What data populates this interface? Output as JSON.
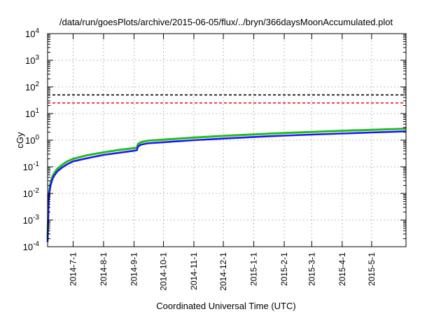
{
  "chart_data": {
    "type": "line",
    "title": "/data/run/goesPlots/archive/2015-06-05/flux/../bryn/366daysMoonAccumulated.plot",
    "xlabel": "Coordinated Universal Time (UTC)",
    "ylabel": "cGy",
    "yscale": "log",
    "ylim": [
      0.0001,
      10000
    ],
    "xlim": [
      "2014-06-05",
      "2015-06-05"
    ],
    "grid": true,
    "x_ticks": [
      {
        "label": "2014-7-1",
        "date": "2014-07-01"
      },
      {
        "label": "2014-8-1",
        "date": "2014-08-01"
      },
      {
        "label": "2014-9-1",
        "date": "2014-09-01"
      },
      {
        "label": "2014-10-1",
        "date": "2014-10-01"
      },
      {
        "label": "2014-11-1",
        "date": "2014-11-01"
      },
      {
        "label": "2014-12-1",
        "date": "2014-12-01"
      },
      {
        "label": "2015-1-1",
        "date": "2015-01-01"
      },
      {
        "label": "2015-2-1",
        "date": "2015-02-01"
      },
      {
        "label": "2015-3-1",
        "date": "2015-03-01"
      },
      {
        "label": "2015-4-1",
        "date": "2015-04-01"
      },
      {
        "label": "2015-5-1",
        "date": "2015-05-01"
      }
    ],
    "y_ticks": [
      {
        "base": "10",
        "exp": "-4",
        "value": 0.0001
      },
      {
        "base": "10",
        "exp": "-3",
        "value": 0.001
      },
      {
        "base": "10",
        "exp": "-2",
        "value": 0.01
      },
      {
        "base": "10",
        "exp": "-1",
        "value": 0.1
      },
      {
        "base": "10",
        "exp": "0",
        "value": 1
      },
      {
        "base": "10",
        "exp": "1",
        "value": 10
      },
      {
        "base": "10",
        "exp": "2",
        "value": 100
      },
      {
        "base": "10",
        "exp": "3",
        "value": 1000
      },
      {
        "base": "10",
        "exp": "4",
        "value": 10000
      }
    ],
    "hlines": [
      {
        "value": 50,
        "color": "#000000"
      },
      {
        "value": 25,
        "color": "#ff0000"
      }
    ],
    "series": [
      {
        "color": "#22bb22",
        "x": [
          "2014-06-05",
          "2014-06-06",
          "2014-06-07",
          "2014-06-08",
          "2014-06-10",
          "2014-06-12",
          "2014-06-15",
          "2014-06-20",
          "2014-06-25",
          "2014-07-01",
          "2014-07-15",
          "2014-08-01",
          "2014-08-15",
          "2014-09-01",
          "2014-09-04",
          "2014-09-05",
          "2014-09-08",
          "2014-09-15",
          "2014-10-01",
          "2014-11-01",
          "2014-12-01",
          "2015-01-01",
          "2015-02-01",
          "2015-03-01",
          "2015-04-01",
          "2015-05-01",
          "2015-06-05"
        ],
        "y": [
          0.0002,
          0.006,
          0.015,
          0.025,
          0.045,
          0.06,
          0.085,
          0.12,
          0.16,
          0.2,
          0.27,
          0.35,
          0.42,
          0.5,
          0.52,
          0.72,
          0.84,
          0.95,
          1.05,
          1.25,
          1.45,
          1.65,
          1.85,
          2.05,
          2.25,
          2.45,
          2.7
        ]
      },
      {
        "color": "#1a1aee",
        "x": [
          "2014-06-05",
          "2014-06-06",
          "2014-06-07",
          "2014-06-08",
          "2014-06-10",
          "2014-06-12",
          "2014-06-15",
          "2014-06-20",
          "2014-06-25",
          "2014-07-01",
          "2014-07-15",
          "2014-08-01",
          "2014-08-15",
          "2014-09-01",
          "2014-09-04",
          "2014-09-05",
          "2014-09-08",
          "2014-09-15",
          "2014-10-01",
          "2014-11-01",
          "2014-12-01",
          "2015-01-01",
          "2015-02-01",
          "2015-03-01",
          "2015-04-01",
          "2015-05-01",
          "2015-06-05"
        ],
        "y": [
          0.00015,
          0.005,
          0.012,
          0.02,
          0.035,
          0.048,
          0.068,
          0.095,
          0.125,
          0.16,
          0.21,
          0.28,
          0.33,
          0.4,
          0.42,
          0.58,
          0.68,
          0.76,
          0.84,
          1.0,
          1.15,
          1.32,
          1.48,
          1.62,
          1.78,
          1.95,
          2.15
        ]
      }
    ]
  }
}
